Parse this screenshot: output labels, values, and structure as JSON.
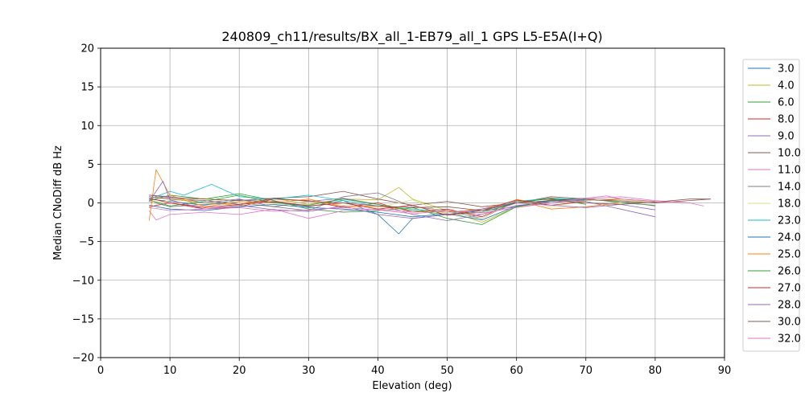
{
  "chart_data": {
    "type": "line",
    "title": "240809_ch11/results/BX_all_1-EB79_all_1 GPS L5-E5A(I+Q)",
    "xlabel": "Elevation (deg)",
    "ylabel": "Median CNoDiff dB Hz",
    "xlim": [
      0,
      90
    ],
    "ylim": [
      -20,
      20
    ],
    "xticks": [
      "0",
      "10",
      "20",
      "30",
      "40",
      "50",
      "60",
      "70",
      "80",
      "90"
    ],
    "yticks": [
      "20",
      "15",
      "10",
      "5",
      "0",
      "−5",
      "−10",
      "−15",
      "−20"
    ],
    "grid": true,
    "legend_position": "right",
    "series": [
      {
        "name": "3.0",
        "color": "#1f77b4",
        "x": [
          7,
          10,
          15,
          20,
          25,
          30,
          35,
          40,
          43,
          45,
          50,
          55,
          60,
          65,
          70,
          75,
          80
        ],
        "values": [
          0.5,
          0.2,
          -0.3,
          0.4,
          0.1,
          -0.5,
          0.3,
          -1.5,
          -4.0,
          -2.0,
          -1.5,
          -1.0,
          -0.5,
          0.3,
          0.5,
          0.2,
          0.0
        ]
      },
      {
        "name": "4.0",
        "color": "#bcbd22",
        "x": [
          7,
          10,
          15,
          20,
          25,
          30,
          35,
          40,
          43,
          45,
          50,
          55,
          60,
          65,
          70,
          75,
          80
        ],
        "values": [
          0.8,
          0.5,
          0.0,
          -0.3,
          0.6,
          -0.2,
          0.5,
          0.4,
          2.0,
          0.5,
          -1.0,
          -2.5,
          -0.5,
          0.0,
          0.5,
          0.3,
          0.2
        ]
      },
      {
        "name": "6.0",
        "color": "#2ca02c",
        "x": [
          7,
          10,
          15,
          20,
          25,
          30,
          35,
          40,
          45,
          50,
          55,
          60,
          65,
          70,
          75,
          80
        ],
        "values": [
          0.3,
          1.0,
          0.5,
          1.2,
          0.3,
          -0.8,
          -1.2,
          -1.0,
          -0.6,
          -2.0,
          -2.8,
          -0.5,
          0.4,
          0.6,
          0.0,
          -0.3
        ]
      },
      {
        "name": "8.0",
        "color": "#d62728",
        "x": [
          7,
          10,
          15,
          20,
          25,
          30,
          35,
          40,
          45,
          50,
          55,
          60,
          65,
          70,
          75,
          80
        ],
        "values": [
          -0.5,
          0.0,
          -0.8,
          -0.5,
          0.5,
          0.3,
          -0.6,
          0.0,
          -1.2,
          -0.8,
          -1.8,
          0.2,
          0.5,
          0.3,
          0.5,
          0.2
        ]
      },
      {
        "name": "9.0",
        "color": "#9467bd",
        "x": [
          7,
          10,
          15,
          20,
          25,
          30,
          35,
          40,
          45,
          50,
          55,
          60,
          65,
          70,
          75,
          80
        ],
        "values": [
          1.0,
          0.8,
          0.0,
          0.5,
          -0.5,
          0.2,
          0.6,
          -0.2,
          -1.5,
          -2.3,
          -1.5,
          0.0,
          0.3,
          0.2,
          -0.8,
          -1.8
        ]
      },
      {
        "name": "10.0",
        "color": "#8c564b",
        "x": [
          7,
          10,
          15,
          20,
          25,
          30,
          35,
          40,
          45,
          50,
          55,
          60,
          65,
          70,
          75,
          80,
          85,
          88
        ],
        "values": [
          0.8,
          0.5,
          0.3,
          -0.2,
          0.6,
          0.8,
          1.5,
          0.5,
          -0.3,
          0.2,
          -0.5,
          0.0,
          0.8,
          0.5,
          0.2,
          0.0,
          0.3,
          0.5
        ]
      },
      {
        "name": "11.0",
        "color": "#e377c2",
        "x": [
          7,
          8,
          10,
          15,
          20,
          25,
          30,
          35,
          40,
          45,
          50,
          55,
          60,
          65,
          70,
          75,
          80,
          85,
          87
        ],
        "values": [
          -1.0,
          -2.2,
          -1.5,
          -1.2,
          -1.5,
          -0.8,
          -2.0,
          -1.0,
          -0.8,
          -1.2,
          -1.0,
          -1.5,
          -0.3,
          0.0,
          0.5,
          0.8,
          0.3,
          0.0,
          -0.4
        ]
      },
      {
        "name": "14.0",
        "color": "#7f7f7f",
        "x": [
          7,
          10,
          15,
          20,
          25,
          30,
          35,
          40,
          45,
          50,
          55,
          60,
          65,
          70,
          75,
          80
        ],
        "values": [
          0.2,
          -0.5,
          -0.2,
          0.0,
          -0.5,
          -1.0,
          0.8,
          1.3,
          -0.5,
          -1.0,
          -2.0,
          0.3,
          0.0,
          0.4,
          0.2,
          -0.4
        ]
      },
      {
        "name": "18.0",
        "color": "#dbdb8d",
        "x": [
          7,
          10,
          15,
          20,
          25,
          30,
          35,
          40,
          45,
          50,
          55,
          60,
          65,
          70,
          75
        ],
        "values": [
          0.0,
          0.3,
          0.6,
          0.0,
          -0.4,
          0.2,
          -0.3,
          -0.6,
          0.4,
          -1.5,
          -2.0,
          0.5,
          -0.5,
          0.3,
          0.6
        ]
      },
      {
        "name": "23.0",
        "color": "#17becf",
        "x": [
          7,
          10,
          12,
          16,
          20,
          25,
          30,
          35,
          40,
          45,
          50,
          55,
          60,
          65,
          70
        ],
        "values": [
          0.5,
          1.5,
          1.0,
          2.4,
          0.8,
          0.5,
          1.0,
          0.3,
          -0.4,
          -0.8,
          -1.2,
          -1.0,
          0.2,
          0.6,
          0.4
        ]
      },
      {
        "name": "24.0",
        "color": "#1f77b4",
        "x": [
          7,
          10,
          15,
          20,
          25,
          30,
          35,
          40,
          45,
          50,
          55,
          60,
          65,
          70
        ],
        "values": [
          -0.3,
          -0.8,
          -1.0,
          -0.5,
          -0.2,
          -0.6,
          -0.8,
          -1.2,
          -1.8,
          -1.4,
          -2.2,
          -0.4,
          0.2,
          0.5
        ]
      },
      {
        "name": "25.0",
        "color": "#ff7f0e",
        "x": [
          7,
          8,
          10,
          15,
          20,
          25,
          30,
          35,
          40,
          45,
          50,
          55,
          60,
          65,
          70,
          75
        ],
        "values": [
          -2.3,
          4.3,
          1.0,
          -0.5,
          0.2,
          0.0,
          0.5,
          -0.5,
          -0.4,
          -1.0,
          -1.2,
          -0.8,
          0.3,
          -0.8,
          -0.5,
          0.0
        ]
      },
      {
        "name": "26.0",
        "color": "#2ca02c",
        "x": [
          7,
          10,
          15,
          20,
          25,
          30,
          35,
          40,
          45,
          50,
          55,
          60,
          65,
          70
        ],
        "values": [
          0.4,
          -0.4,
          0.2,
          1.0,
          0.0,
          -0.3,
          0.5,
          -0.2,
          -1.0,
          -1.5,
          -1.2,
          0.0,
          0.6,
          -0.2
        ]
      },
      {
        "name": "27.0",
        "color": "#d62728",
        "x": [
          7,
          10,
          15,
          20,
          25,
          30,
          35,
          40,
          45,
          50,
          55,
          60,
          65,
          70
        ],
        "values": [
          0.6,
          0.0,
          -0.6,
          -0.2,
          0.2,
          -0.4,
          0.0,
          -0.8,
          -0.3,
          -1.6,
          -1.0,
          0.4,
          -0.3,
          0.2
        ]
      },
      {
        "name": "28.0",
        "color": "#9467bd",
        "x": [
          7,
          9,
          10,
          15,
          20,
          25,
          30,
          35,
          40,
          45,
          50,
          55,
          60,
          65,
          70,
          75,
          80
        ],
        "values": [
          0.2,
          2.8,
          0.4,
          -0.8,
          -0.3,
          -0.9,
          -1.1,
          -0.4,
          -1.5,
          -2.0,
          -1.5,
          -0.8,
          0.0,
          -0.3,
          -0.6,
          -0.2,
          -0.9
        ]
      },
      {
        "name": "30.0",
        "color": "#8c564b",
        "x": [
          7,
          10,
          15,
          20,
          25,
          30,
          35,
          40,
          45,
          50,
          55,
          60,
          65,
          70,
          75,
          80,
          85,
          88
        ],
        "values": [
          1.0,
          0.7,
          0.5,
          0.3,
          0.6,
          0.2,
          0.0,
          -0.4,
          -0.6,
          -0.5,
          -1.0,
          0.0,
          0.3,
          0.0,
          -0.2,
          0.1,
          0.5,
          0.5
        ]
      },
      {
        "name": "32.0",
        "color": "#e377c2",
        "x": [
          7,
          10,
          15,
          20,
          25,
          30,
          35,
          40,
          45,
          50,
          55,
          60,
          65,
          70,
          73,
          75,
          80,
          85
        ],
        "values": [
          -0.6,
          -1.0,
          -0.8,
          -0.6,
          -1.1,
          -0.9,
          -0.6,
          -0.9,
          -1.4,
          -1.0,
          -1.3,
          -0.6,
          0.0,
          0.6,
          0.9,
          0.5,
          0.2,
          0.0
        ]
      }
    ]
  }
}
